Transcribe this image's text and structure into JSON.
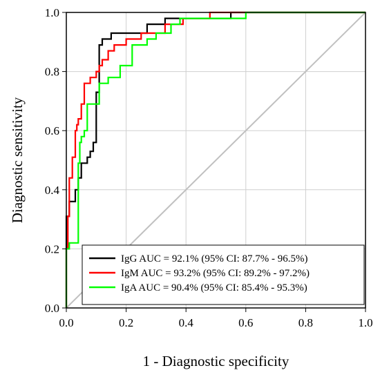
{
  "chart_data": {
    "type": "line",
    "title": "",
    "xlabel": "1 - Diagnostic specificity",
    "ylabel": "Diagnostic sensitivity",
    "xlim": [
      0,
      1
    ],
    "ylim": [
      0,
      1
    ],
    "xticks": [
      "0.0",
      "0.2",
      "0.4",
      "0.6",
      "0.8",
      "1.0"
    ],
    "yticks": [
      "0.0",
      "0.2",
      "0.4",
      "0.6",
      "0.8",
      "1.0"
    ],
    "grid": true,
    "legend_position": "bottom-right",
    "reference_line": {
      "x": [
        0,
        1
      ],
      "y": [
        0,
        1
      ],
      "color": "#c0c0c0"
    },
    "series": [
      {
        "name": "IgG AUC = 92.1% (95% CI: 87.7% - 96.5%)",
        "color": "#000000",
        "x": [
          0,
          0,
          0.01,
          0.01,
          0.02,
          0.02,
          0.03,
          0.03,
          0.04,
          0.04,
          0.05,
          0.05,
          0.06,
          0.06,
          0.07,
          0.07,
          0.08,
          0.08,
          0.09,
          0.09,
          0.1,
          0.1,
          0.11,
          0.11,
          0.12,
          0.12,
          0.13,
          0.13,
          0.15,
          0.15,
          0.25,
          0.25,
          0.27,
          0.27,
          0.33,
          0.33,
          0.36,
          0.36,
          0.55,
          0.55,
          1.0
        ],
        "y": [
          0,
          0.31,
          0.31,
          0.36,
          0.36,
          0.36,
          0.36,
          0.4,
          0.4,
          0.44,
          0.44,
          0.49,
          0.49,
          0.49,
          0.49,
          0.51,
          0.51,
          0.53,
          0.53,
          0.56,
          0.56,
          0.73,
          0.73,
          0.89,
          0.89,
          0.91,
          0.91,
          0.91,
          0.91,
          0.93,
          0.93,
          0.93,
          0.93,
          0.96,
          0.96,
          0.98,
          0.98,
          0.98,
          0.98,
          1.0,
          1.0
        ]
      },
      {
        "name": "IgM AUC = 93.2% (95% CI: 89.2% - 97.2%)",
        "color": "#ff0000",
        "x": [
          0,
          0,
          0.005,
          0.005,
          0.01,
          0.01,
          0.02,
          0.02,
          0.03,
          0.03,
          0.035,
          0.035,
          0.04,
          0.04,
          0.05,
          0.05,
          0.06,
          0.06,
          0.07,
          0.07,
          0.08,
          0.08,
          0.1,
          0.1,
          0.11,
          0.11,
          0.12,
          0.12,
          0.13,
          0.13,
          0.14,
          0.14,
          0.16,
          0.16,
          0.2,
          0.2,
          0.22,
          0.22,
          0.25,
          0.25,
          0.33,
          0.33,
          0.39,
          0.39,
          0.48,
          0.48,
          0.6,
          0.6,
          1.0
        ],
        "y": [
          0,
          0.2,
          0.2,
          0.31,
          0.31,
          0.44,
          0.44,
          0.51,
          0.51,
          0.6,
          0.6,
          0.62,
          0.62,
          0.64,
          0.64,
          0.69,
          0.69,
          0.76,
          0.76,
          0.76,
          0.76,
          0.78,
          0.78,
          0.8,
          0.8,
          0.82,
          0.82,
          0.84,
          0.84,
          0.84,
          0.84,
          0.87,
          0.87,
          0.89,
          0.89,
          0.91,
          0.91,
          0.91,
          0.91,
          0.93,
          0.93,
          0.96,
          0.96,
          0.98,
          0.98,
          1.0,
          1.0,
          1.0,
          1.0
        ]
      },
      {
        "name": "IgA AUC = 90.4% (95% CI: 85.4% - 95.3%)",
        "color": "#00ff00",
        "x": [
          0,
          0,
          0.01,
          0.01,
          0.02,
          0.02,
          0.04,
          0.04,
          0.045,
          0.045,
          0.05,
          0.05,
          0.06,
          0.06,
          0.07,
          0.07,
          0.09,
          0.09,
          0.11,
          0.11,
          0.12,
          0.12,
          0.14,
          0.14,
          0.18,
          0.18,
          0.22,
          0.22,
          0.27,
          0.27,
          0.3,
          0.3,
          0.35,
          0.35,
          0.38,
          0.38,
          0.6,
          0.6,
          1.0
        ],
        "y": [
          0,
          0.2,
          0.2,
          0.22,
          0.22,
          0.22,
          0.22,
          0.49,
          0.49,
          0.56,
          0.56,
          0.58,
          0.58,
          0.6,
          0.6,
          0.69,
          0.69,
          0.69,
          0.69,
          0.76,
          0.76,
          0.76,
          0.76,
          0.78,
          0.78,
          0.82,
          0.82,
          0.89,
          0.89,
          0.91,
          0.91,
          0.93,
          0.93,
          0.96,
          0.96,
          0.98,
          0.98,
          1.0,
          1.0
        ]
      }
    ]
  }
}
